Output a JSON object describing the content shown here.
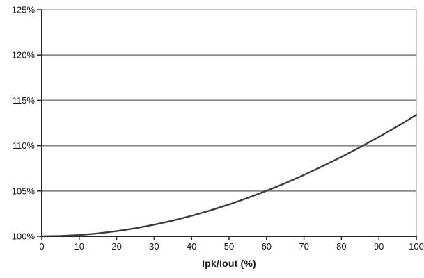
{
  "chart_data": {
    "type": "line",
    "title": "",
    "xlabel": "Ipk/Iout (%)",
    "ylabel": "",
    "xlim": [
      0,
      100
    ],
    "ylim": [
      100,
      125
    ],
    "x_ticks": [
      0,
      10,
      20,
      30,
      40,
      50,
      60,
      70,
      80,
      90,
      100
    ],
    "x_tick_labels": [
      "0",
      "10",
      "20",
      "30",
      "40",
      "50",
      "60",
      "70",
      "80",
      "90",
      "100"
    ],
    "y_ticks": [
      100,
      105,
      110,
      115,
      120,
      125
    ],
    "y_tick_labels": [
      "100%",
      "105%",
      "110%",
      "115%",
      "120%",
      "125%"
    ],
    "grid": "horizontal",
    "legend": "none",
    "series": [
      {
        "x": [
          0,
          5,
          10,
          15,
          20,
          25,
          30,
          35,
          40,
          45,
          50,
          55,
          60,
          65,
          70,
          75,
          80,
          85,
          90,
          95,
          100
        ],
        "y": [
          100.0,
          100.04,
          100.14,
          100.32,
          100.57,
          100.89,
          101.28,
          101.73,
          102.26,
          102.85,
          103.51,
          104.23,
          105.02,
          105.86,
          106.77,
          107.74,
          108.76,
          109.84,
          110.97,
          112.15,
          113.39
        ]
      }
    ],
    "colors": {
      "background": "#ffffff",
      "line": "#3d3d3d",
      "grid": "#8a8a8a",
      "axis": "#262626",
      "frame": "#b3b3b3",
      "text": "#141414"
    }
  }
}
